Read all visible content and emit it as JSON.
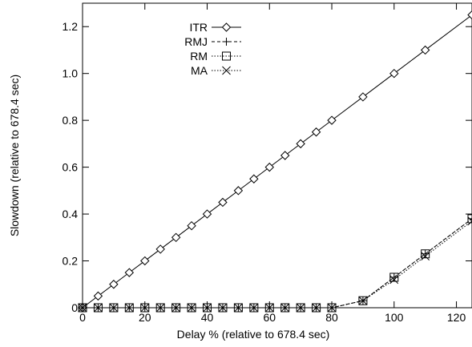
{
  "chart_data": {
    "type": "line",
    "xlabel": "Delay % (relative to 678.4 sec)",
    "ylabel": "Slowdown (relative to  678.4 sec)",
    "xlim": [
      0,
      125
    ],
    "ylim": [
      0,
      1.3
    ],
    "xticks": [
      0,
      20,
      40,
      60,
      80,
      100,
      120
    ],
    "yticks": [
      0,
      0.2,
      0.4,
      0.6,
      0.8,
      1.0,
      1.2
    ],
    "xtick_labels": [
      "0",
      "20",
      "40",
      "60",
      "80",
      "100",
      "120"
    ],
    "ytick_labels": [
      "0",
      "0.2",
      "0.4",
      "0.6",
      "0.8",
      "1.0",
      "1.2"
    ],
    "legend_position": "top-left",
    "grid": false,
    "series": [
      {
        "name": "ITR",
        "marker": "diamond",
        "line": "solid",
        "x": [
          0,
          5,
          10,
          15,
          20,
          25,
          30,
          35,
          40,
          45,
          50,
          55,
          60,
          65,
          70,
          75,
          80,
          90,
          100,
          110,
          125
        ],
        "y": [
          0,
          0.05,
          0.1,
          0.15,
          0.2,
          0.25,
          0.3,
          0.35,
          0.4,
          0.45,
          0.5,
          0.55,
          0.6,
          0.65,
          0.7,
          0.75,
          0.8,
          0.9,
          1.0,
          1.1,
          1.25
        ]
      },
      {
        "name": "RMJ",
        "marker": "plus",
        "line": "dashed",
        "x": [
          0,
          5,
          10,
          15,
          20,
          25,
          30,
          35,
          40,
          45,
          50,
          55,
          60,
          65,
          70,
          75,
          80,
          90,
          100,
          110,
          125
        ],
        "y": [
          0,
          0,
          0,
          0,
          0,
          0,
          0,
          0,
          0,
          0,
          0,
          0,
          0,
          0,
          0,
          0,
          0,
          0.03,
          0.13,
          0.23,
          0.38
        ]
      },
      {
        "name": "RM",
        "marker": "square",
        "line": "dotted",
        "x": [
          0,
          5,
          10,
          15,
          20,
          25,
          30,
          35,
          40,
          45,
          50,
          55,
          60,
          65,
          70,
          75,
          80,
          90,
          100,
          110,
          125
        ],
        "y": [
          0,
          0,
          0,
          0,
          0,
          0,
          0,
          0,
          0,
          0,
          0,
          0,
          0,
          0,
          0,
          0,
          0,
          0.03,
          0.13,
          0.23,
          0.38
        ]
      },
      {
        "name": "MA",
        "marker": "x",
        "line": "dotted",
        "x": [
          0,
          5,
          10,
          15,
          20,
          25,
          30,
          35,
          40,
          45,
          50,
          55,
          60,
          65,
          70,
          75,
          80,
          90,
          100,
          110,
          125
        ],
        "y": [
          0,
          0,
          0,
          0,
          0,
          0,
          0,
          0,
          0,
          0,
          0,
          0,
          0,
          0,
          0,
          0,
          0,
          0.03,
          0.12,
          0.22,
          0.37
        ]
      }
    ]
  }
}
